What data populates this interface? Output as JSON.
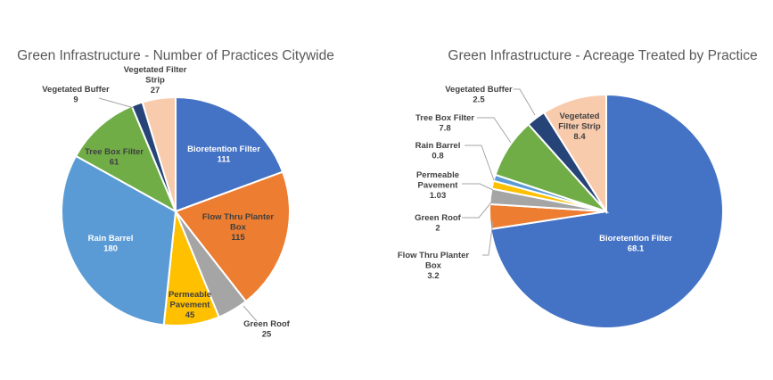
{
  "chart_data": [
    {
      "type": "pie",
      "title": "Green Infrastructure - Number of Practices Citywide",
      "slices": [
        {
          "name": "Bioretention  Filter",
          "value": 111,
          "value_label": "111",
          "color": "#4472C4"
        },
        {
          "name": "Flow Thru Planter Box",
          "value": 115,
          "value_label": "115",
          "color": "#ED7D31"
        },
        {
          "name": "Green Roof",
          "value": 25,
          "value_label": "25",
          "color": "#A5A5A5"
        },
        {
          "name": "Permeable Pavement",
          "value": 45,
          "value_label": "45",
          "color": "#FFC000"
        },
        {
          "name": "Rain Barrel",
          "value": 180,
          "value_label": "180",
          "color": "#5B9BD5"
        },
        {
          "name": "Tree Box Filter",
          "value": 61,
          "value_label": "61",
          "color": "#70AD47"
        },
        {
          "name": "Vegetated Buffer",
          "value": 9,
          "value_label": "9",
          "color": "#264478"
        },
        {
          "name": "Vegetated Filter Strip",
          "value": 27,
          "value_label": "27",
          "color": "#F8CBAD"
        }
      ]
    },
    {
      "type": "pie",
      "title": "Green Infrastructure - Acreage Treated by Practice",
      "slices": [
        {
          "name": "Bioretention  Filter",
          "value": 68.1,
          "value_label": "68.1",
          "color": "#4472C4"
        },
        {
          "name": "Flow Thru Planter Box",
          "value": 3.2,
          "value_label": "3.2",
          "color": "#ED7D31"
        },
        {
          "name": "Green Roof",
          "value": 2,
          "value_label": "2",
          "color": "#A5A5A5"
        },
        {
          "name": "Permeable Pavement",
          "value": 1.03,
          "value_label": "1.03",
          "color": "#FFC000"
        },
        {
          "name": "Rain Barrel",
          "value": 0.8,
          "value_label": "0.8",
          "color": "#5B9BD5"
        },
        {
          "name": "Tree Box Filter",
          "value": 7.8,
          "value_label": "7.8",
          "color": "#70AD47"
        },
        {
          "name": "Vegetated Buffer",
          "value": 2.5,
          "value_label": "2.5",
          "color": "#264478"
        },
        {
          "name": "Vegetated Filter Strip",
          "value": 8.4,
          "value_label": "8.4",
          "color": "#F8CBAD"
        }
      ]
    }
  ]
}
